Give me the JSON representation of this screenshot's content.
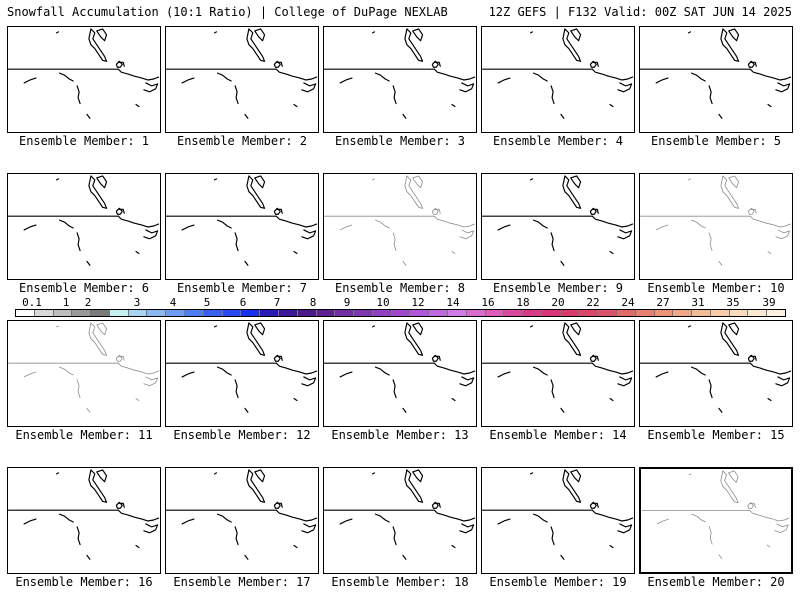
{
  "header": {
    "left": "Snowfall Accumulation (10:1 Ratio) | College of DuPage NEXLAB",
    "right": "12Z GEFS | F132 Valid: 00Z SAT JUN 14 2025"
  },
  "panels": [
    {
      "label": "Ensemble Member: 1",
      "style": "dark"
    },
    {
      "label": "Ensemble Member: 2",
      "style": "dark"
    },
    {
      "label": "Ensemble Member: 3",
      "style": "dark"
    },
    {
      "label": "Ensemble Member: 4",
      "style": "dark"
    },
    {
      "label": "Ensemble Member: 5",
      "style": "dark"
    },
    {
      "label": "Ensemble Member: 6",
      "style": "dark"
    },
    {
      "label": "Ensemble Member: 7",
      "style": "dark"
    },
    {
      "label": "Ensemble Member: 8",
      "style": "light"
    },
    {
      "label": "Ensemble Member: 9",
      "style": "dark"
    },
    {
      "label": "Ensemble Member: 10",
      "style": "light"
    },
    {
      "label": "Ensemble Member: 11",
      "style": "light"
    },
    {
      "label": "Ensemble Member: 12",
      "style": "dark"
    },
    {
      "label": "Ensemble Member: 13",
      "style": "dark"
    },
    {
      "label": "Ensemble Member: 14",
      "style": "dark"
    },
    {
      "label": "Ensemble Member: 15",
      "style": "dark"
    },
    {
      "label": "Ensemble Member: 16",
      "style": "dark"
    },
    {
      "label": "Ensemble Member: 17",
      "style": "dark"
    },
    {
      "label": "Ensemble Member: 18",
      "style": "dark"
    },
    {
      "label": "Ensemble Member: 19",
      "style": "dark"
    },
    {
      "label": "Ensemble Member: 20",
      "style": "light",
      "selected": true
    }
  ],
  "colorbar": {
    "labels": [
      "0.1",
      "1",
      "2",
      "3",
      "4",
      "5",
      "6",
      "7",
      "8",
      "9",
      "10",
      "12",
      "14",
      "16",
      "18",
      "20",
      "22",
      "24",
      "27",
      "31",
      "35",
      "39"
    ],
    "colors": [
      "#ffffff",
      "#d9d9d9",
      "#bdbdbd",
      "#9a9a9a",
      "#7a7a7a",
      "#c8f0f0",
      "#a8d4f0",
      "#8cb8f0",
      "#6e9cf0",
      "#4f7ef0",
      "#3a62f0",
      "#2a48f0",
      "#1a30f0",
      "#2a1ab8",
      "#3a1a98",
      "#4a1a8a",
      "#5e2290",
      "#7030a0",
      "#8038b0",
      "#9040c0",
      "#a048cc",
      "#b058d8",
      "#c06ae0",
      "#d07ae6",
      "#d86ad0",
      "#e05ab8",
      "#d84aa0",
      "#d83a88",
      "#d8347a",
      "#d83c6c",
      "#d8466a",
      "#d85468",
      "#e06a6a",
      "#e68070",
      "#ea9478",
      "#eea888",
      "#f2bc98",
      "#f6cca8",
      "#f8dcbc",
      "#fae8d0",
      "#fcf2e2"
    ]
  }
}
